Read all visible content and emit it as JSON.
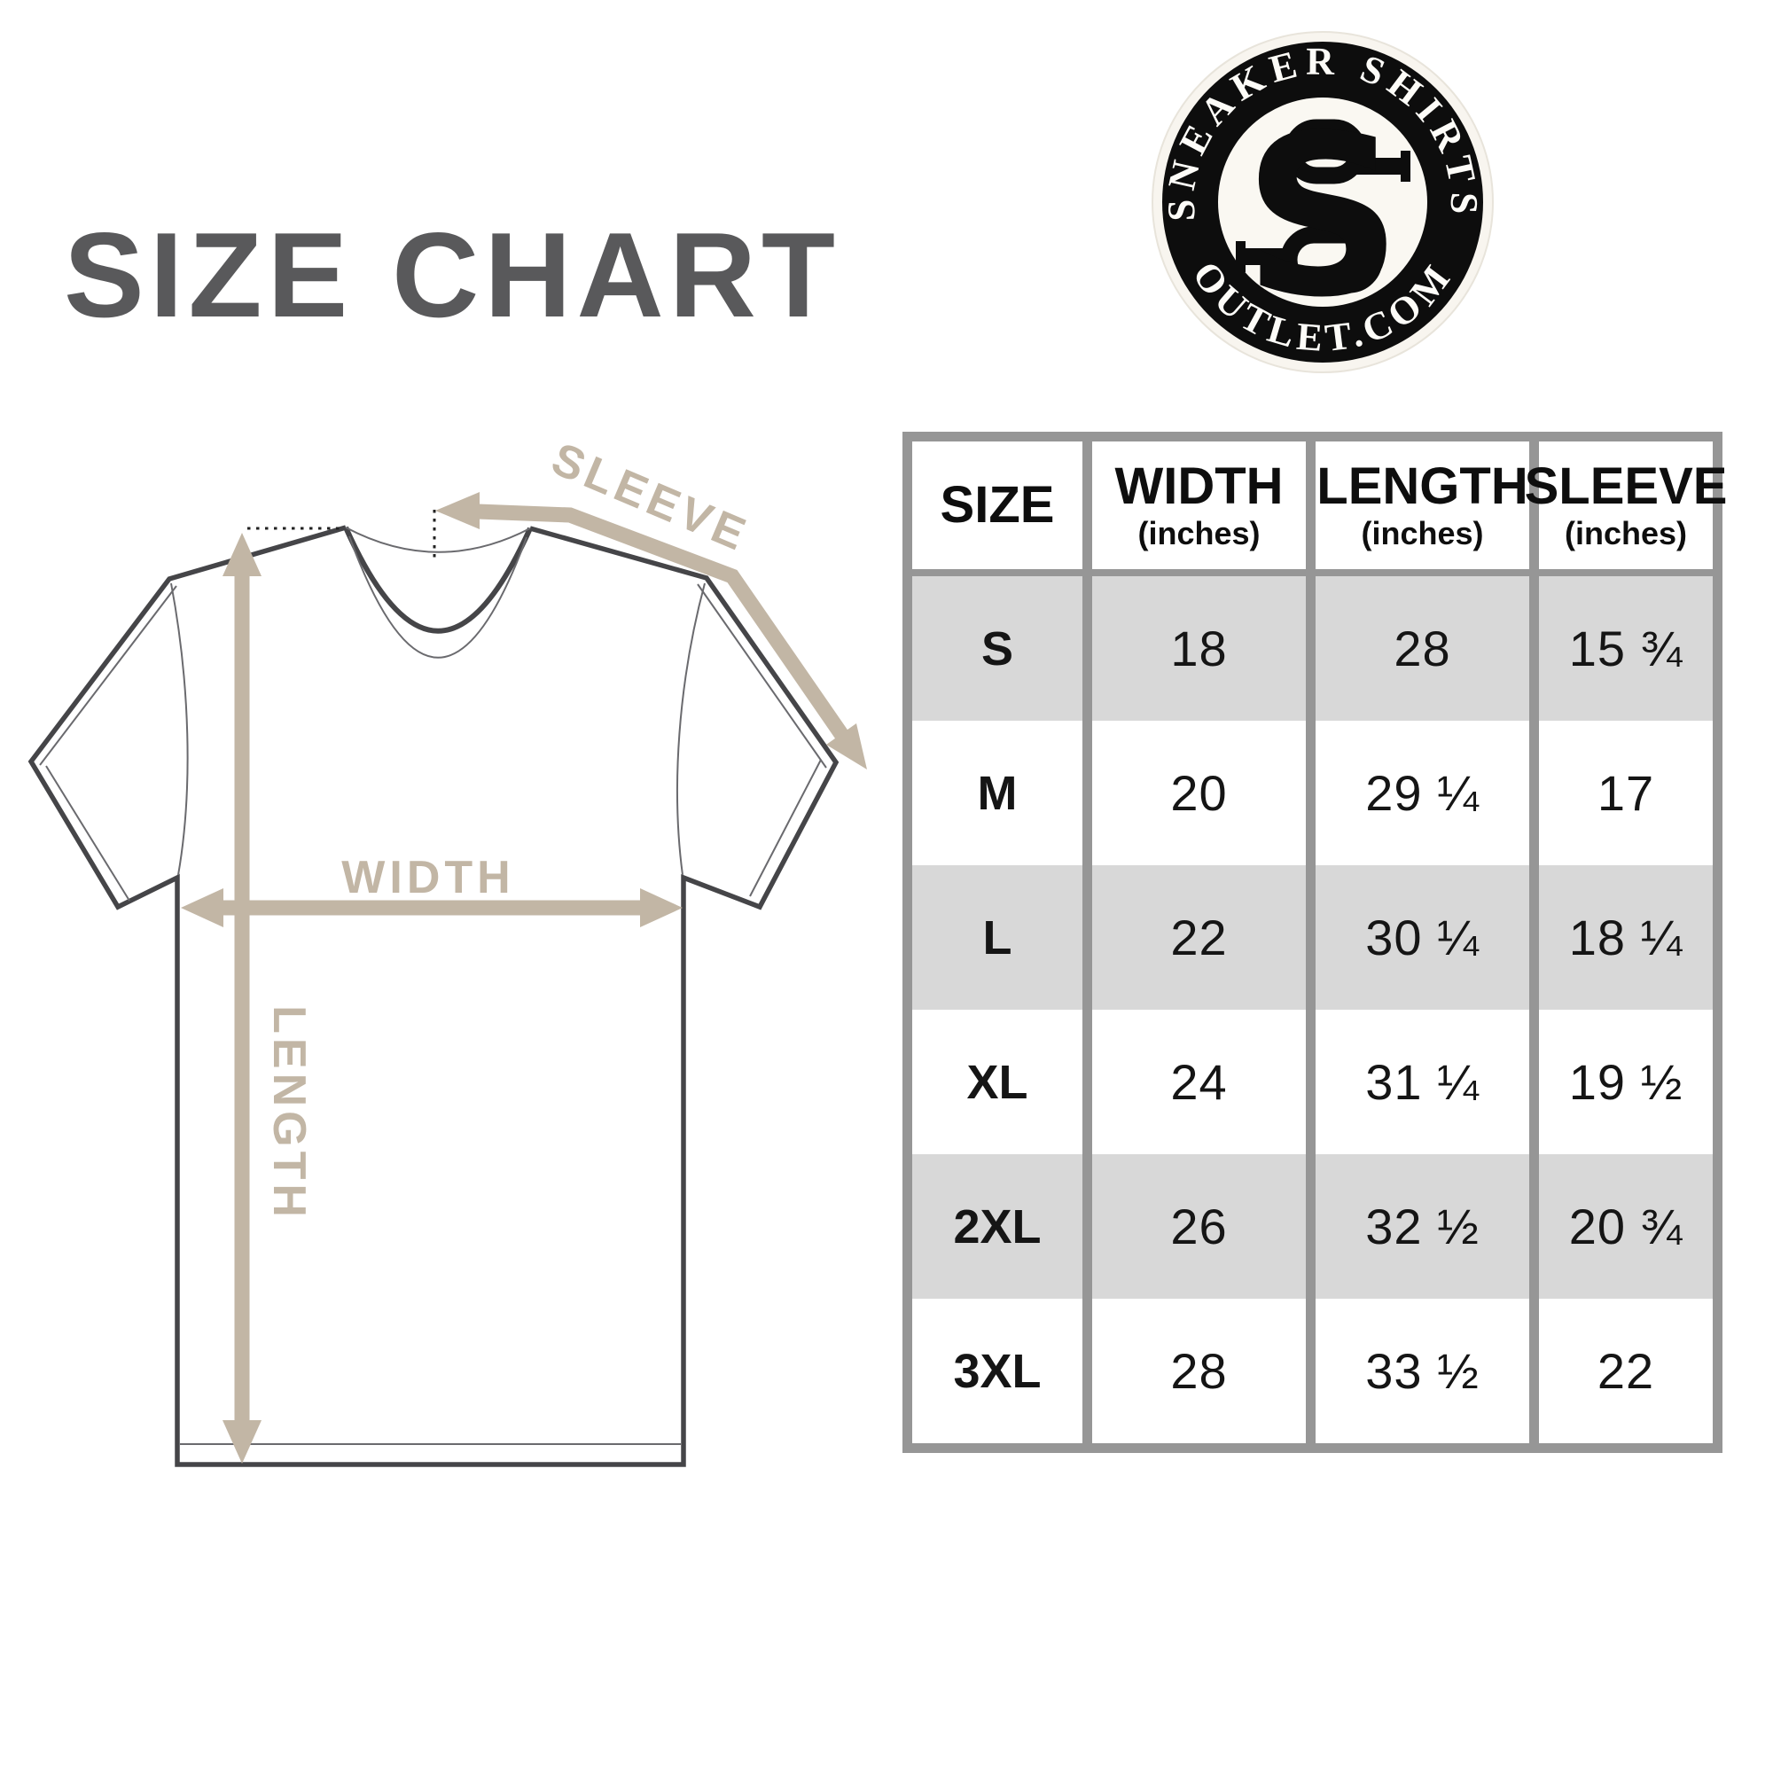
{
  "title": "SIZE CHART",
  "logo": {
    "arc_top": "SNEAKER SHIRTS",
    "arc_bottom": "OUTLET.COM",
    "monogram": "S"
  },
  "diagram": {
    "width_label": "WIDTH",
    "length_label": "LENGTH",
    "sleeve_label": "SLEEVE"
  },
  "size_table": {
    "headers": [
      {
        "label": "SIZE",
        "sub": ""
      },
      {
        "label": "WIDTH",
        "sub": "(inches)"
      },
      {
        "label": "LENGTH",
        "sub": "(inches)"
      },
      {
        "label": "SLEEVE",
        "sub": "(inches)"
      }
    ],
    "rows": [
      {
        "size": "S",
        "width": "18",
        "length": "28",
        "sleeve": "15 ¾",
        "shaded": true
      },
      {
        "size": "M",
        "width": "20",
        "length": "29 ¼",
        "sleeve": "17",
        "shaded": false
      },
      {
        "size": "L",
        "width": "22",
        "length": "30 ¼",
        "sleeve": "18 ¼",
        "shaded": true
      },
      {
        "size": "XL",
        "width": "24",
        "length": "31 ¼",
        "sleeve": "19 ½",
        "shaded": false
      },
      {
        "size": "2XL",
        "width": "26",
        "length": "32 ½",
        "sleeve": "20 ¾",
        "shaded": true
      },
      {
        "size": "3XL",
        "width": "28",
        "length": "33 ½",
        "sleeve": "22",
        "shaded": false
      }
    ]
  },
  "colors": {
    "accent_tan": "#c2b6a5",
    "table_border": "#969696",
    "row_shade": "#d8d8d8",
    "title_gray": "#59595b",
    "shirt_outline": "#454548",
    "ink": "#111111"
  },
  "chart_data": {
    "type": "table",
    "title": "SIZE CHART",
    "columns": [
      "SIZE",
      "WIDTH (inches)",
      "LENGTH (inches)",
      "SLEEVE (inches)"
    ],
    "rows": [
      [
        "S",
        "18",
        "28",
        "15 ¾"
      ],
      [
        "M",
        "20",
        "29 ¼",
        "17"
      ],
      [
        "L",
        "22",
        "30 ¼",
        "18 ¼"
      ],
      [
        "XL",
        "24",
        "31 ¼",
        "19 ½"
      ],
      [
        "2XL",
        "26",
        "32 ½",
        "20 ¾"
      ],
      [
        "3XL",
        "28",
        "33 ½",
        "22"
      ]
    ],
    "notes": "T-shirt measurement diagram with WIDTH, LENGTH and SLEEVE arrows; shaded rows S, L, 2XL"
  }
}
